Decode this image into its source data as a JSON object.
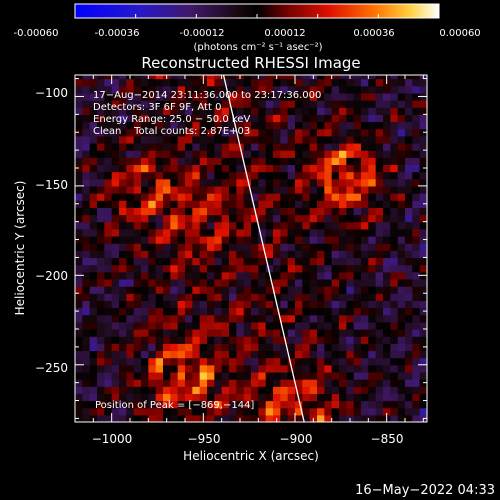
{
  "colorbar": {
    "ticks": [
      "-0.00060",
      "-0.00036",
      "-0.00012",
      "0.00012",
      "0.00036",
      "0.00060"
    ],
    "units_label": "(photons cm⁻² s⁻¹ asec⁻²)"
  },
  "chart_data": {
    "type": "heatmap",
    "title": "Reconstructed RHESSI Image",
    "xlabel": "Heliocentric X (arcsec)",
    "ylabel": "Heliocentric Y (arcsec)",
    "xlim": [
      -1020,
      -828
    ],
    "ylim": [
      -282,
      -88
    ],
    "xticks": [
      -1000,
      -950,
      -900,
      -850
    ],
    "yticks": [
      -100,
      -150,
      -200,
      -250
    ],
    "xtick_labels": [
      "−1000",
      "−950",
      "−900",
      "−850"
    ],
    "ytick_labels": [
      "−100",
      "−150",
      "−200",
      "−250"
    ],
    "colorbar_range": [
      -0.0006,
      0.0006
    ],
    "limb_line": {
      "x": [
        -939,
        -895
      ],
      "y": [
        -88,
        -282
      ]
    },
    "peak_xy": [
      -869,
      -144
    ],
    "peak_value": 0.0006,
    "bright_sources": [
      {
        "x": -871,
        "y": -145,
        "value": 0.00055
      },
      {
        "x": -962,
        "y": -255,
        "value": 0.00045
      },
      {
        "x": -900,
        "y": -275,
        "value": 0.0004
      },
      {
        "x": -985,
        "y": -152,
        "value": 0.00035
      },
      {
        "x": -953,
        "y": -168,
        "value": 0.0003
      }
    ],
    "annotations": [
      "17−Aug−2014 23:11:36.000 to 23:17:36.000",
      "Detectors: 3F 6F 9F, Att 0",
      "Energy Range: 25.0 − 50.0 keV",
      "Clean    Total counts: 2.87E+03",
      "Position of Peak = [−869,−144]"
    ]
  },
  "timestamp": "16−May−2022 04:33"
}
